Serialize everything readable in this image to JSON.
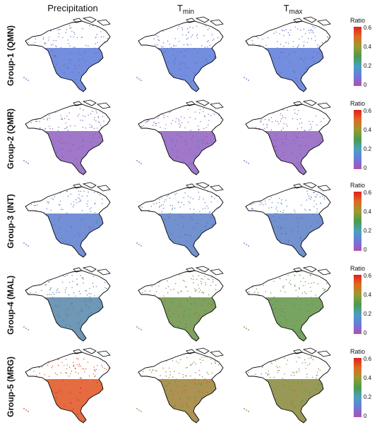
{
  "columns": [
    {
      "key": "precip",
      "label": "Precipitation",
      "sub": ""
    },
    {
      "key": "tmin",
      "label": "T",
      "sub": "min"
    },
    {
      "key": "tmax",
      "label": "T",
      "sub": "max"
    }
  ],
  "rows": [
    {
      "label": "Group-1 (QMN)",
      "values": {
        "precip": 0.15,
        "tmin": 0.15,
        "tmax": 0.15
      }
    },
    {
      "label": "Group-2 (QMR)",
      "values": {
        "precip": 0.06,
        "tmin": 0.06,
        "tmax": 0.06
      }
    },
    {
      "label": "Group-3 (INT)",
      "values": {
        "precip": 0.16,
        "tmin": 0.17,
        "tmax": 0.17
      }
    },
    {
      "label": "Group-4 (MAL)",
      "values": {
        "precip": 0.2,
        "tmin": 0.33,
        "tmax": 0.32
      }
    },
    {
      "label": "Group-5 (MRG)",
      "values": {
        "precip": 0.5,
        "tmin": 0.38,
        "tmax": 0.36
      }
    }
  ],
  "legend": {
    "title": "Ratio",
    "ticks": [
      "0.6",
      "0.4",
      "0.2",
      "0"
    ],
    "min": 0,
    "max": 0.6
  },
  "colors": {
    "low": "#b04fb0",
    "mid_low": "#5b7ad8",
    "mid": "#4c9a4c",
    "mid_high": "#e06a20",
    "high": "#e02020",
    "outline": "#000000"
  }
}
